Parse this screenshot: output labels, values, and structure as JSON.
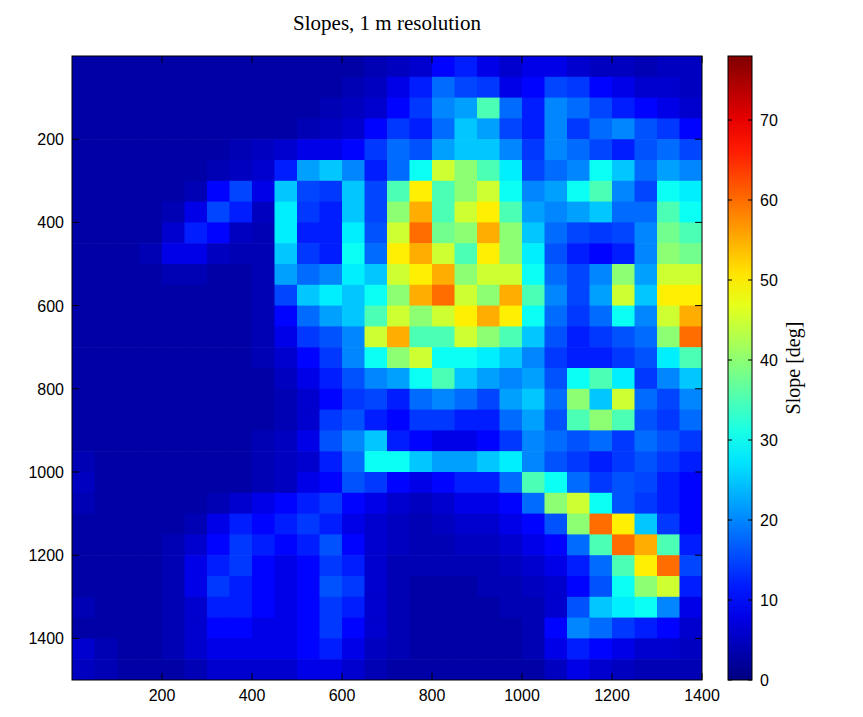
{
  "chart_data": {
    "type": "heatmap",
    "title": "Slopes, 1 m resolution",
    "xlim": [
      0,
      1400
    ],
    "ylim": [
      0,
      1500
    ],
    "xticks": [
      200,
      400,
      600,
      800,
      1000,
      1200,
      1400
    ],
    "yticks": [
      200,
      400,
      600,
      800,
      1000,
      1200,
      1400
    ],
    "x_bins": [
      0,
      50,
      100,
      150,
      200,
      250,
      300,
      350,
      400,
      450,
      500,
      550,
      600,
      650,
      700,
      750,
      800,
      850,
      900,
      950,
      1000,
      1050,
      1100,
      1150,
      1200,
      1250,
      1300,
      1350,
      1400
    ],
    "y_bins": [
      0,
      50,
      100,
      150,
      200,
      250,
      300,
      350,
      400,
      450,
      500,
      550,
      600,
      650,
      700,
      750,
      800,
      850,
      900,
      950,
      1000,
      1050,
      1100,
      1150,
      1200,
      1250,
      1300,
      1350,
      1400,
      1450,
      1500
    ],
    "values": [
      [
        3,
        3,
        3,
        3,
        3,
        3,
        3,
        3,
        3,
        3,
        3,
        3,
        3,
        4,
        5,
        6,
        10,
        12,
        8,
        6,
        8,
        8,
        6,
        5,
        5,
        4,
        5,
        5
      ],
      [
        3,
        3,
        3,
        3,
        3,
        3,
        3,
        3,
        3,
        3,
        3,
        3,
        4,
        5,
        8,
        12,
        18,
        15,
        14,
        8,
        10,
        15,
        14,
        10,
        8,
        6,
        6,
        5
      ],
      [
        3,
        3,
        3,
        3,
        3,
        3,
        3,
        3,
        3,
        3,
        3,
        4,
        5,
        6,
        10,
        14,
        20,
        22,
        35,
        18,
        12,
        20,
        18,
        15,
        12,
        10,
        8,
        6
      ],
      [
        3,
        3,
        3,
        3,
        3,
        3,
        3,
        3,
        3,
        3,
        4,
        5,
        6,
        10,
        14,
        12,
        18,
        25,
        22,
        15,
        12,
        20,
        14,
        18,
        20,
        16,
        14,
        10
      ],
      [
        3,
        3,
        3,
        3,
        3,
        3,
        3,
        4,
        5,
        6,
        8,
        8,
        10,
        14,
        18,
        16,
        22,
        25,
        25,
        20,
        14,
        20,
        18,
        15,
        12,
        16,
        18,
        15
      ],
      [
        3,
        3,
        3,
        3,
        3,
        3,
        4,
        5,
        6,
        12,
        22,
        25,
        20,
        12,
        18,
        30,
        45,
        40,
        35,
        28,
        15,
        18,
        20,
        30,
        25,
        18,
        22,
        20
      ],
      [
        3,
        3,
        3,
        3,
        3,
        4,
        10,
        15,
        8,
        25,
        15,
        14,
        25,
        15,
        35,
        50,
        35,
        40,
        45,
        30,
        20,
        22,
        30,
        35,
        20,
        15,
        30,
        28
      ],
      [
        3,
        3,
        3,
        3,
        4,
        8,
        15,
        12,
        5,
        28,
        14,
        12,
        25,
        15,
        40,
        55,
        35,
        45,
        50,
        35,
        22,
        20,
        22,
        25,
        18,
        18,
        35,
        30
      ],
      [
        3,
        3,
        3,
        3,
        6,
        12,
        10,
        5,
        4,
        28,
        12,
        12,
        28,
        16,
        45,
        60,
        38,
        40,
        55,
        40,
        25,
        18,
        15,
        14,
        15,
        20,
        38,
        35
      ],
      [
        3,
        3,
        3,
        4,
        8,
        8,
        5,
        4,
        4,
        25,
        14,
        12,
        30,
        18,
        50,
        55,
        45,
        35,
        50,
        40,
        28,
        16,
        12,
        10,
        12,
        20,
        40,
        38
      ],
      [
        3,
        3,
        3,
        3,
        4,
        4,
        3,
        3,
        4,
        22,
        18,
        20,
        28,
        25,
        45,
        50,
        55,
        40,
        45,
        45,
        30,
        18,
        15,
        20,
        40,
        22,
        45,
        45
      ],
      [
        3,
        3,
        3,
        3,
        3,
        3,
        3,
        3,
        4,
        15,
        25,
        28,
        25,
        30,
        40,
        55,
        60,
        45,
        40,
        55,
        35,
        20,
        15,
        22,
        45,
        25,
        50,
        50
      ],
      [
        3,
        3,
        3,
        3,
        3,
        3,
        3,
        3,
        4,
        10,
        18,
        22,
        25,
        35,
        45,
        40,
        45,
        50,
        55,
        50,
        30,
        18,
        14,
        18,
        30,
        20,
        45,
        55
      ],
      [
        3,
        3,
        3,
        3,
        3,
        3,
        3,
        3,
        4,
        8,
        14,
        16,
        20,
        45,
        55,
        35,
        35,
        45,
        40,
        35,
        25,
        16,
        12,
        14,
        16,
        18,
        40,
        60
      ],
      [
        3,
        3,
        3,
        3,
        3,
        3,
        3,
        3,
        4,
        6,
        10,
        14,
        20,
        30,
        40,
        45,
        30,
        30,
        28,
        25,
        20,
        14,
        12,
        12,
        14,
        16,
        28,
        35
      ],
      [
        3,
        3,
        3,
        3,
        3,
        3,
        3,
        3,
        3,
        5,
        8,
        12,
        16,
        20,
        22,
        30,
        35,
        25,
        22,
        20,
        22,
        16,
        30,
        35,
        28,
        14,
        20,
        25
      ],
      [
        3,
        3,
        3,
        3,
        3,
        3,
        3,
        3,
        3,
        4,
        6,
        10,
        14,
        15,
        12,
        18,
        20,
        18,
        15,
        22,
        25,
        18,
        40,
        25,
        45,
        18,
        15,
        20
      ],
      [
        3,
        3,
        3,
        3,
        3,
        3,
        3,
        3,
        3,
        4,
        6,
        14,
        16,
        12,
        10,
        14,
        14,
        12,
        12,
        18,
        22,
        16,
        35,
        40,
        35,
        16,
        14,
        18
      ],
      [
        3,
        3,
        3,
        3,
        3,
        3,
        3,
        3,
        4,
        5,
        8,
        16,
        20,
        25,
        12,
        10,
        8,
        8,
        10,
        14,
        20,
        18,
        16,
        18,
        14,
        18,
        16,
        14
      ],
      [
        4,
        3,
        3,
        3,
        3,
        3,
        3,
        3,
        4,
        5,
        6,
        12,
        18,
        30,
        30,
        25,
        22,
        22,
        25,
        28,
        20,
        16,
        14,
        12,
        14,
        16,
        14,
        12
      ],
      [
        5,
        3,
        3,
        3,
        3,
        3,
        3,
        3,
        4,
        5,
        8,
        10,
        16,
        14,
        10,
        8,
        10,
        12,
        12,
        18,
        35,
        30,
        18,
        14,
        16,
        15,
        12,
        10
      ],
      [
        4,
        3,
        3,
        3,
        3,
        3,
        4,
        6,
        8,
        10,
        12,
        14,
        10,
        8,
        6,
        5,
        6,
        8,
        8,
        10,
        18,
        40,
        45,
        30,
        16,
        14,
        12,
        10
      ],
      [
        3,
        3,
        3,
        3,
        3,
        4,
        8,
        12,
        10,
        12,
        14,
        12,
        8,
        6,
        5,
        4,
        5,
        6,
        6,
        8,
        10,
        16,
        40,
        60,
        50,
        25,
        14,
        10
      ],
      [
        3,
        3,
        3,
        3,
        4,
        6,
        10,
        14,
        12,
        10,
        12,
        16,
        10,
        6,
        5,
        4,
        4,
        5,
        5,
        6,
        8,
        10,
        18,
        35,
        60,
        55,
        35,
        12
      ],
      [
        3,
        3,
        3,
        3,
        4,
        8,
        12,
        14,
        10,
        8,
        10,
        14,
        12,
        6,
        4,
        4,
        4,
        4,
        4,
        5,
        6,
        8,
        12,
        18,
        35,
        50,
        60,
        15
      ],
      [
        3,
        3,
        3,
        3,
        4,
        8,
        14,
        12,
        10,
        8,
        10,
        16,
        14,
        6,
        4,
        3,
        3,
        3,
        4,
        4,
        5,
        6,
        10,
        16,
        30,
        40,
        45,
        12
      ],
      [
        4,
        3,
        3,
        3,
        4,
        6,
        12,
        12,
        10,
        8,
        10,
        14,
        12,
        6,
        4,
        3,
        3,
        3,
        3,
        4,
        4,
        6,
        16,
        25,
        28,
        30,
        20,
        8
      ],
      [
        3,
        3,
        3,
        3,
        4,
        6,
        10,
        10,
        8,
        8,
        10,
        14,
        10,
        6,
        4,
        3,
        3,
        3,
        3,
        3,
        4,
        10,
        20,
        18,
        14,
        12,
        10,
        6
      ],
      [
        6,
        4,
        3,
        3,
        4,
        6,
        8,
        8,
        8,
        8,
        10,
        12,
        8,
        5,
        4,
        3,
        3,
        3,
        3,
        3,
        4,
        8,
        12,
        10,
        8,
        6,
        6,
        5
      ],
      [
        5,
        4,
        3,
        3,
        3,
        4,
        6,
        6,
        6,
        6,
        8,
        8,
        6,
        4,
        3,
        3,
        3,
        3,
        3,
        3,
        3,
        5,
        8,
        6,
        5,
        4,
        4,
        4
      ]
    ],
    "colorbar": {
      "label": "Slope [deg]",
      "range": [
        0,
        78
      ],
      "ticks": [
        0,
        10,
        20,
        30,
        40,
        50,
        60,
        70
      ]
    }
  }
}
